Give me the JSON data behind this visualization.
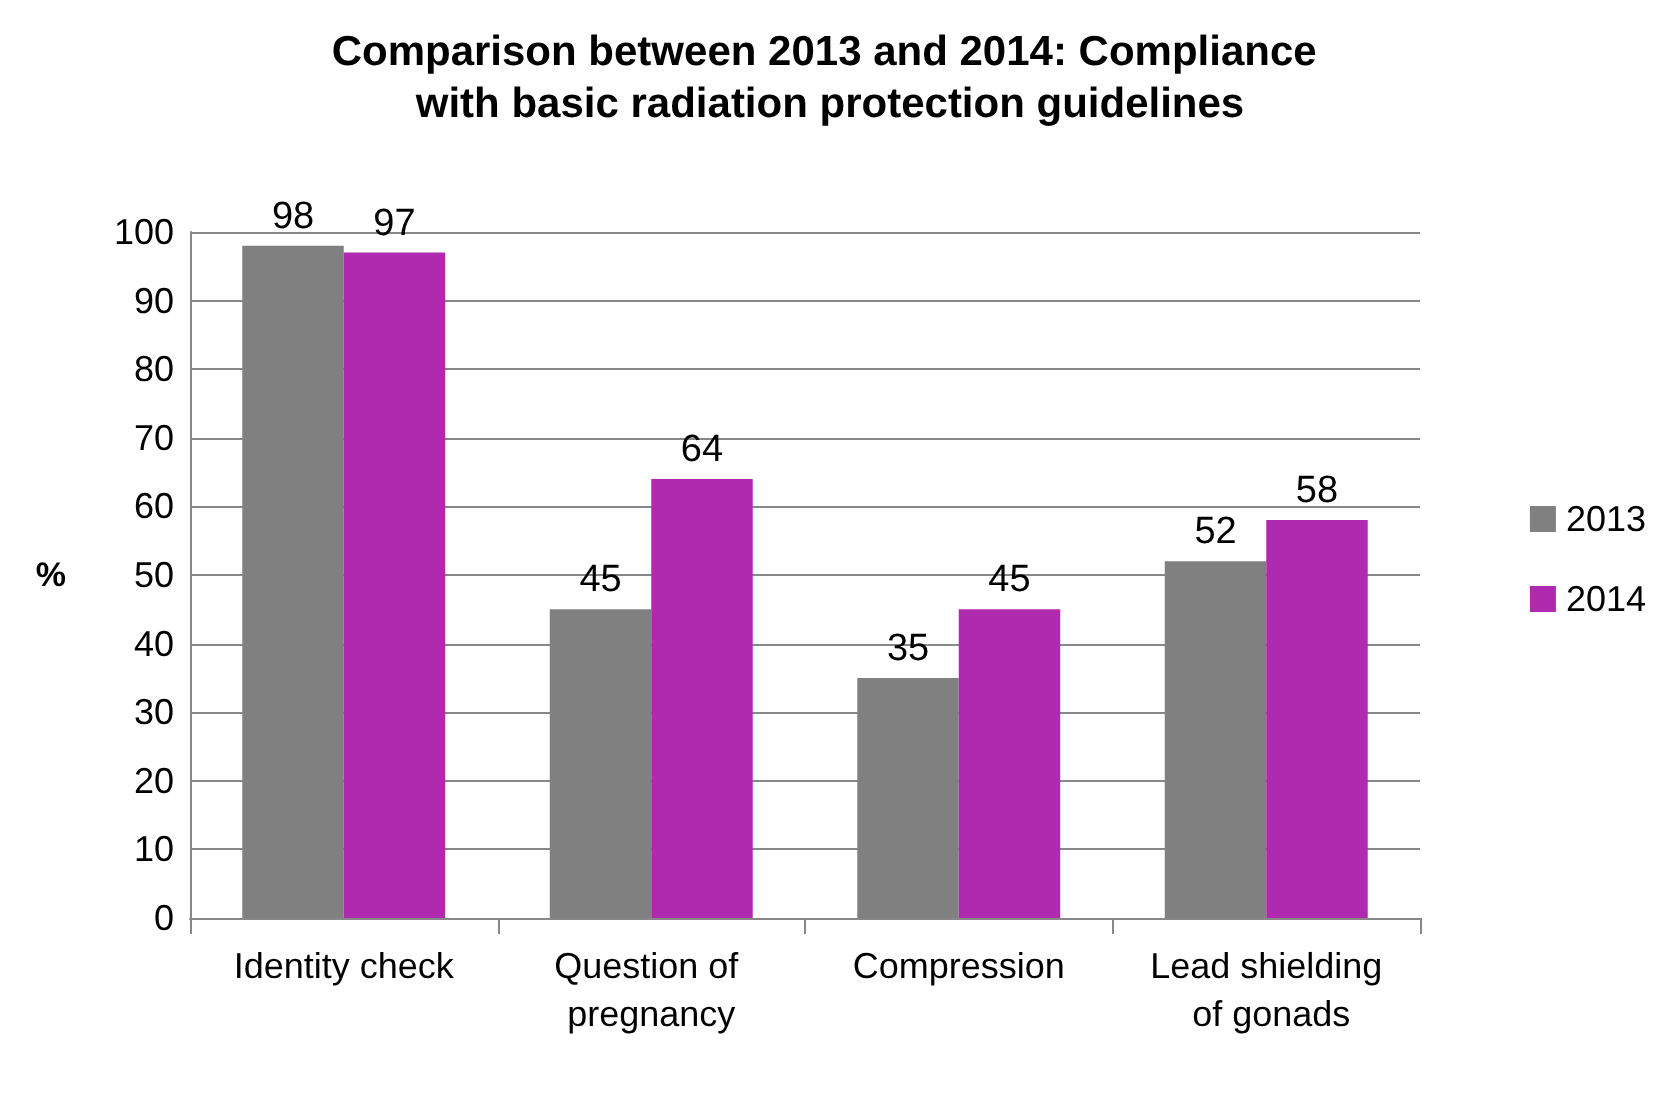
{
  "chart_data": {
    "type": "bar",
    "title": "Comparison between 2013 and 2014: Compliance with basic radiation protection guidelines",
    "ylabel": "%",
    "categories": [
      "Identity check",
      "Question of pregnancy",
      "Compression",
      "Lead shielding of gonads"
    ],
    "series": [
      {
        "name": "2013",
        "color": "#808080",
        "values": [
          98,
          45,
          35,
          52
        ]
      },
      {
        "name": "2014",
        "color": "#b02ab0",
        "values": [
          97,
          64,
          45,
          58
        ]
      }
    ],
    "ylim": [
      0,
      100
    ],
    "yticks": [
      0,
      10,
      20,
      30,
      40,
      50,
      60,
      70,
      80,
      90,
      100
    ],
    "grid": "y",
    "legend": "right",
    "data_labels": true
  }
}
